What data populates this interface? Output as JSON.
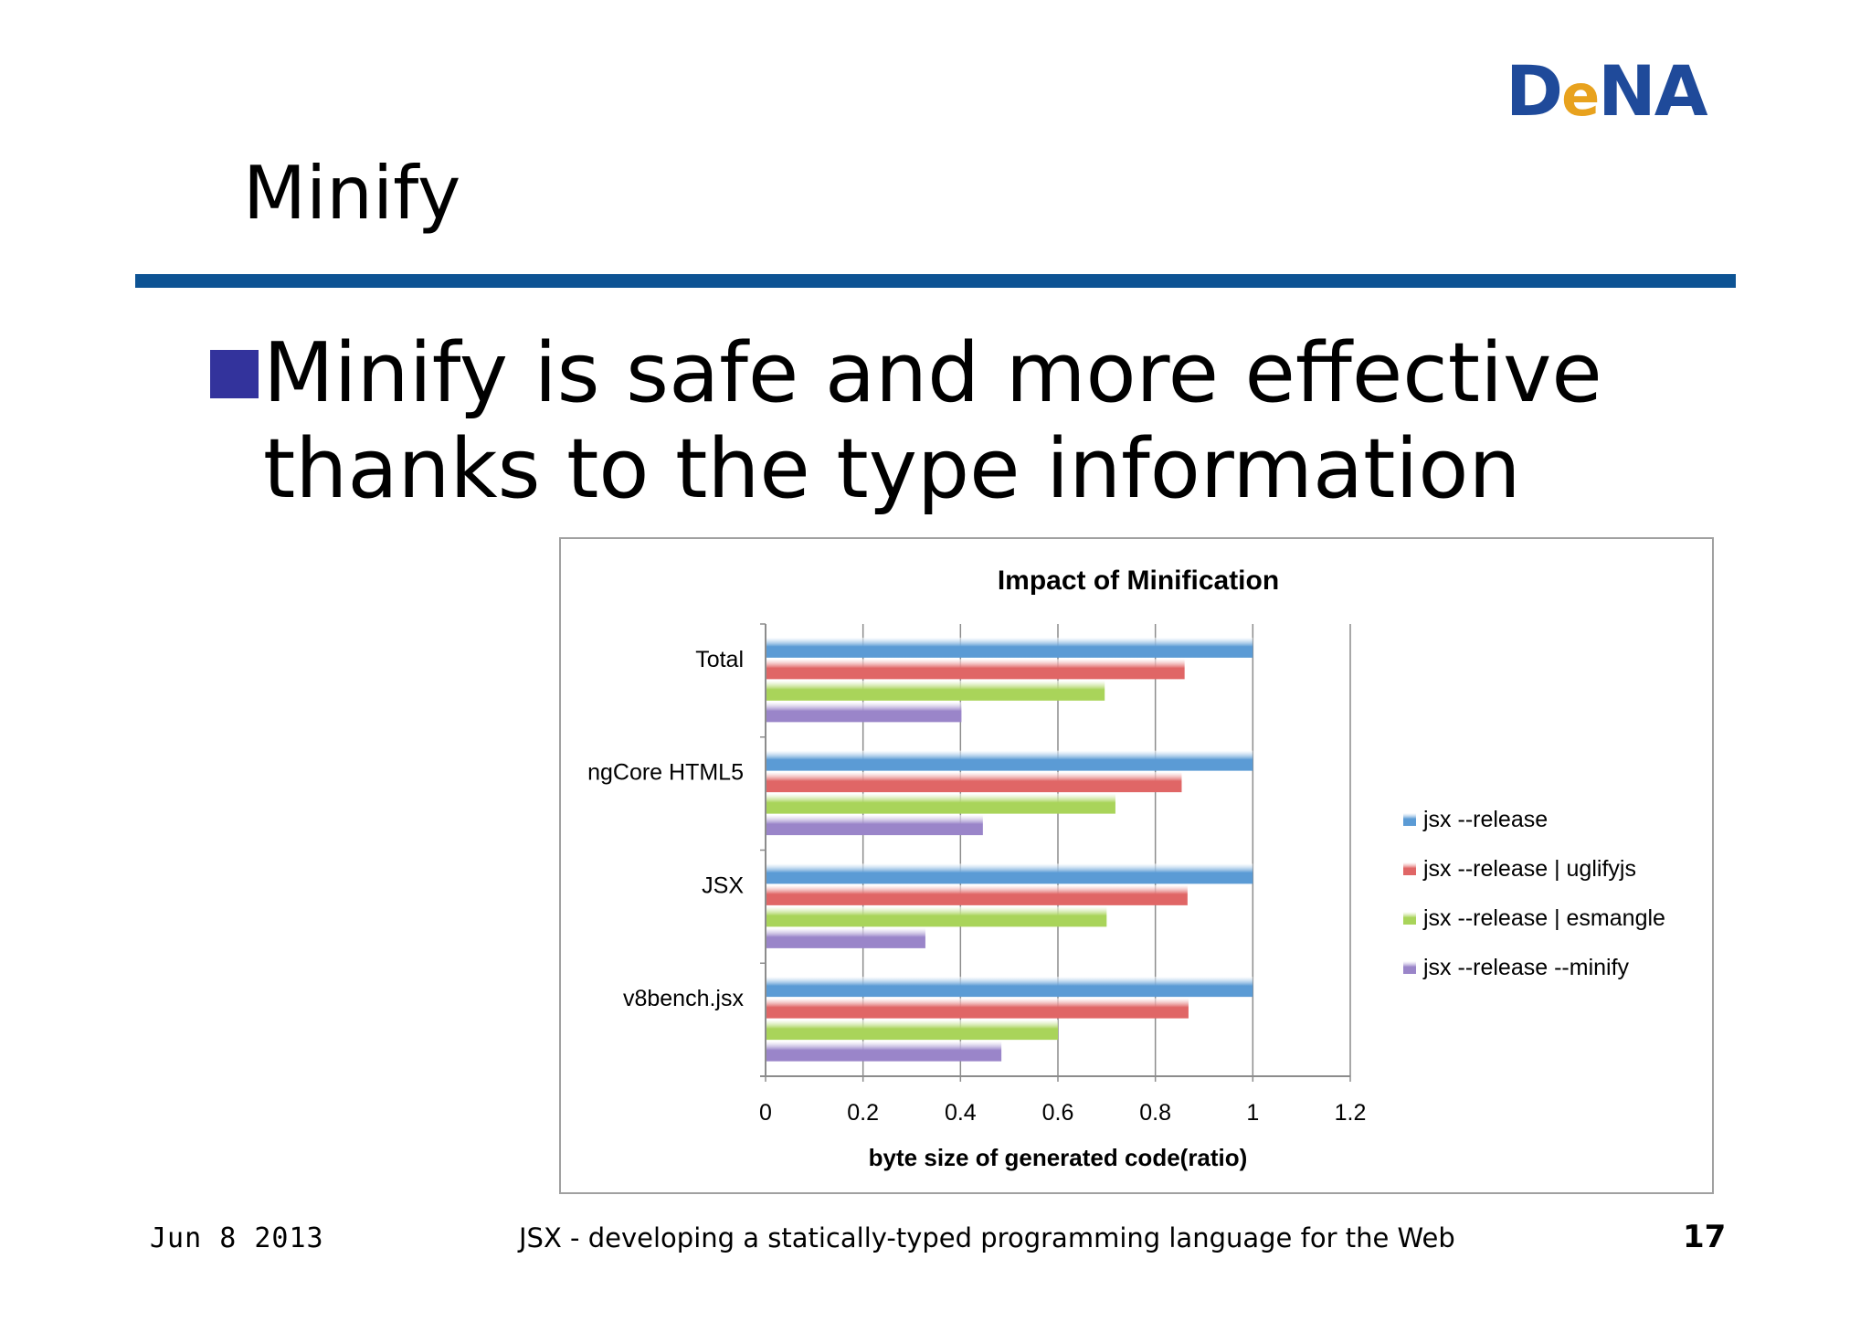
{
  "logo": {
    "part1": "D",
    "part2": "e",
    "part3": "NA"
  },
  "slide": {
    "title": "Minify",
    "bullet": "Minify is safe and more effective thanks to the type information"
  },
  "footer": {
    "date": "Jun 8 2013",
    "subtitle": "JSX - developing a statically-typed programming language for the Web",
    "page": "17"
  },
  "colors": {
    "title_rule": "#0d5394",
    "bullet": "#33339c",
    "logo_blue": "#1f4a9a",
    "logo_orange": "#e8a21e"
  },
  "chart_data": {
    "type": "bar",
    "orientation": "horizontal",
    "title": "Impact of Minification",
    "xlabel": "byte size of generated code(ratio)",
    "ylabel": "",
    "xlim": [
      0,
      1.2
    ],
    "x_ticks": [
      "0",
      "0.2",
      "0.4",
      "0.6",
      "0.8",
      "1",
      "1.2"
    ],
    "grid": "vertical",
    "legend_position": "right",
    "categories": [
      "Total",
      "ngCore HTML5",
      "JSX",
      "v8bench.jsx"
    ],
    "series": [
      {
        "name": "jsx --release",
        "color": "#5b9bd5",
        "values": [
          1.0,
          1.0,
          1.0,
          1.0
        ]
      },
      {
        "name": "jsx --release | uglifyjs",
        "color": "#e06666",
        "values": [
          0.86,
          0.854,
          0.866,
          0.868
        ]
      },
      {
        "name": "jsx --release | esmangle",
        "color": "#a9d45a",
        "values": [
          0.696,
          0.718,
          0.7,
          0.6
        ]
      },
      {
        "name": "jsx --release --minify",
        "color": "#9a85c9",
        "values": [
          0.402,
          0.446,
          0.328,
          0.484
        ]
      }
    ]
  }
}
